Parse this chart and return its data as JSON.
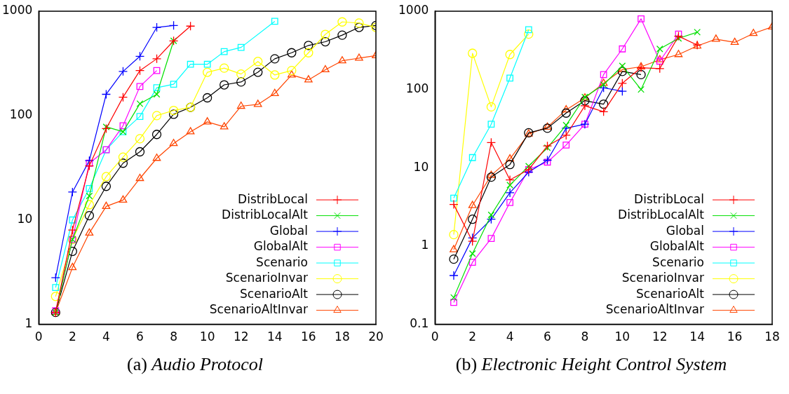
{
  "chart_data": [
    {
      "type": "line",
      "annotations": [
        "(a) Audio Protocol"
      ],
      "x": [
        1,
        2,
        3,
        4,
        5,
        6,
        7,
        8,
        9,
        10,
        11,
        12,
        13,
        14,
        15,
        16,
        17,
        18,
        19,
        20
      ],
      "xlim": [
        0,
        20
      ],
      "xticks": [
        0,
        2,
        4,
        6,
        8,
        10,
        12,
        14,
        16,
        18,
        20
      ],
      "ylim": [
        1,
        1000
      ],
      "yticks": [
        1,
        10,
        100,
        1000
      ],
      "log": "y",
      "grid": false,
      "legend": "bottom right",
      "series": [
        {
          "name": "DistribLocal",
          "color": "#ff0000",
          "marker": "cross",
          "x": [
            1,
            2,
            3,
            4,
            5,
            6,
            7,
            8,
            9
          ],
          "values": [
            1.3,
            8,
            33,
            75,
            150,
            270,
            350,
            520,
            720
          ]
        },
        {
          "name": "DistribLocalAlt",
          "color": "#00e000",
          "marker": "x",
          "x": [
            1,
            2,
            3,
            4,
            5,
            6,
            7,
            8
          ],
          "values": [
            1.3,
            6.5,
            17,
            78,
            70,
            130,
            160,
            520
          ]
        },
        {
          "name": "Global",
          "color": "#0000ff",
          "marker": "cross",
          "x": [
            1,
            2,
            3,
            4,
            5,
            6,
            7,
            8
          ],
          "values": [
            2.8,
            18.5,
            37,
            160,
            265,
            370,
            700,
            730
          ]
        },
        {
          "name": "GlobalAlt",
          "color": "#ff00ff",
          "marker": "square",
          "x": [
            1,
            2,
            3,
            4,
            5,
            6,
            7
          ],
          "values": [
            1.35,
            6.5,
            35,
            47,
            80,
            190,
            270
          ]
        },
        {
          "name": "Scenario",
          "color": "#00ffff",
          "marker": "square",
          "x": [
            1,
            2,
            3,
            4,
            5,
            6,
            7,
            8,
            9,
            10,
            11,
            12,
            14
          ],
          "values": [
            2.25,
            10,
            20,
            47,
            70,
            98,
            185,
            200,
            310,
            310,
            410,
            450,
            800
          ]
        },
        {
          "name": "ScenarioInvar",
          "color": "#ffff00",
          "marker": "circle",
          "values": [
            1.85,
            6.5,
            14,
            26,
            40,
            60,
            100,
            112,
            120,
            260,
            285,
            250,
            330,
            245,
            270,
            400,
            600,
            790,
            770,
            700
          ]
        },
        {
          "name": "ScenarioAlt",
          "color": "#000000",
          "marker": "circle",
          "values": [
            1.3,
            5,
            11,
            21,
            35,
            45,
            66,
            103,
            120,
            148,
            197,
            210,
            260,
            350,
            400,
            470,
            510,
            590,
            700,
            730
          ]
        },
        {
          "name": "ScenarioAltInvar",
          "color": "#ff4500",
          "marker": "triangle",
          "values": [
            1.3,
            3.5,
            7.5,
            13.5,
            15.5,
            25,
            39,
            54,
            70,
            87,
            78,
            123,
            128,
            163,
            245,
            220,
            275,
            335,
            355,
            375
          ]
        }
      ]
    },
    {
      "type": "line",
      "annotations": [
        "(b) Electronic Height Control System"
      ],
      "x": [
        1,
        2,
        3,
        4,
        5,
        6,
        7,
        8,
        9,
        10,
        11,
        12,
        13,
        14,
        15,
        16,
        17,
        18
      ],
      "xlim": [
        0,
        18
      ],
      "xticks": [
        0,
        2,
        4,
        6,
        8,
        10,
        12,
        14,
        16,
        18
      ],
      "ylim": [
        0.1,
        1000
      ],
      "yticks": [
        0.1,
        1,
        10,
        100,
        1000
      ],
      "log": "y",
      "grid": false,
      "legend": "bottom right",
      "series": [
        {
          "name": "DistribLocal",
          "color": "#ff0000",
          "marker": "cross",
          "x": [
            1,
            2,
            3,
            4,
            5,
            6,
            7,
            8,
            9,
            10,
            11,
            12,
            13,
            14
          ],
          "values": [
            3.4,
            1.15,
            21,
            7,
            9.5,
            19,
            26,
            62,
            52,
            120,
            190,
            185,
            480,
            370
          ]
        },
        {
          "name": "DistribLocalAlt",
          "color": "#00e000",
          "marker": "x",
          "x": [
            1,
            2,
            3,
            4,
            5,
            6,
            7,
            8,
            9,
            10,
            11,
            12,
            13,
            14
          ],
          "values": [
            0.22,
            0.8,
            2.5,
            6,
            10.5,
            18,
            35,
            80,
            115,
            200,
            100,
            330,
            450,
            540
          ]
        },
        {
          "name": "Global",
          "color": "#0000ff",
          "marker": "cross",
          "x": [
            1,
            2,
            3,
            4,
            5,
            6,
            7,
            8,
            9,
            10
          ],
          "values": [
            0.42,
            1.27,
            2.2,
            4.8,
            8.8,
            12.5,
            32,
            36,
            105,
            95
          ]
        },
        {
          "name": "GlobalAlt",
          "color": "#ff00ff",
          "marker": "square",
          "x": [
            1,
            2,
            3,
            4,
            5,
            6,
            7,
            8,
            9,
            10,
            11,
            12,
            13
          ],
          "values": [
            0.19,
            0.62,
            1.25,
            3.6,
            9.5,
            11.8,
            19.5,
            36,
            155,
            330,
            800,
            230,
            510
          ]
        },
        {
          "name": "Scenario",
          "color": "#00ffff",
          "marker": "square",
          "x": [
            1,
            2,
            3,
            4,
            5
          ],
          "values": [
            4.1,
            13.5,
            36,
            140,
            580
          ]
        },
        {
          "name": "ScenarioInvar",
          "color": "#ffff00",
          "marker": "circle",
          "x": [
            1,
            2,
            3,
            4,
            5
          ],
          "values": [
            1.4,
            290,
            60,
            280,
            510
          ]
        },
        {
          "name": "ScenarioAlt",
          "color": "#000000",
          "marker": "circle",
          "x": [
            1,
            2,
            3,
            4,
            5,
            6,
            7,
            8,
            9,
            10,
            11
          ],
          "values": [
            0.68,
            2.2,
            7.6,
            11,
            28,
            32,
            50,
            72,
            65,
            170,
            155
          ]
        },
        {
          "name": "ScenarioAltInvar",
          "color": "#ff4500",
          "marker": "triangle",
          "values": [
            0.9,
            3.3,
            8,
            13,
            27,
            33,
            55,
            78,
            120,
            180,
            195,
            240,
            280,
            360,
            440,
            400,
            520,
            630
          ]
        }
      ]
    }
  ]
}
